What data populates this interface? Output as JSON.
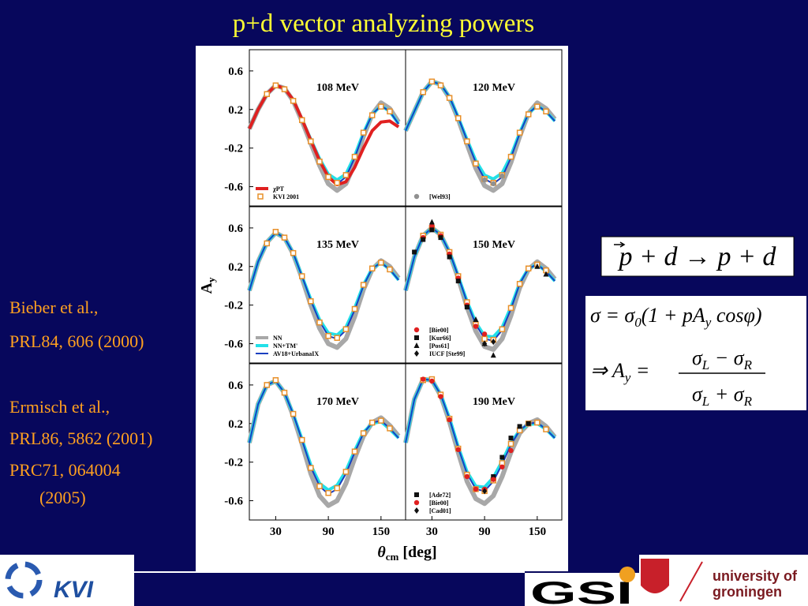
{
  "slide": {
    "title": "p+d vector analyzing powers",
    "references": [
      "Bieber et al.,",
      "PRL84, 606 (2000)",
      "Ermisch et al.,",
      "PRL86, 5862 (2001)",
      "PRC71, 064004",
      "(2005)"
    ]
  },
  "formulas": {
    "reaction": "p + d → p + d",
    "cross_section": [
      "σ = σ",
      "0",
      "(1 + pA",
      "y",
      " cosφ)"
    ],
    "analyzing_power": {
      "lhs": [
        "⇒ A",
        "y",
        " ="
      ],
      "numerator": [
        "σ",
        "L",
        " − σ",
        "R"
      ],
      "denominator": [
        "σ",
        "L",
        " + σ",
        "R"
      ]
    }
  },
  "figure": {
    "y_label": "A",
    "y_label_sub": "y",
    "x_label": "θ",
    "x_label_sub": "cm",
    "x_label_unit": "[deg]"
  },
  "logos": {
    "kvi": "KVI",
    "gsi": "GSI",
    "university_line1": "university of",
    "university_line2": "groningen"
  },
  "chart_data": [
    {
      "type": "line",
      "title": "108 MeV",
      "x": [
        0,
        10,
        20,
        30,
        40,
        50,
        60,
        70,
        80,
        90,
        100,
        110,
        120,
        130,
        140,
        150,
        160,
        170
      ],
      "xlim": [
        0,
        178
      ],
      "ylim": [
        -0.8,
        0.82
      ],
      "yticks": [
        0.6,
        0.2,
        -0.2,
        -0.6
      ],
      "legend": "lower left",
      "series": [
        {
          "color": "#a8a8a8",
          "marker": "line",
          "width": 6,
          "values": [
            0.0,
            0.2,
            0.36,
            0.45,
            0.42,
            0.29,
            0.08,
            -0.15,
            -0.38,
            -0.57,
            -0.64,
            -0.57,
            -0.36,
            -0.08,
            0.15,
            0.27,
            0.21,
            0.07
          ]
        },
        {
          "color": "#22e0e8",
          "marker": "line",
          "width": 4,
          "values": [
            0.0,
            0.2,
            0.36,
            0.45,
            0.42,
            0.3,
            0.1,
            -0.11,
            -0.31,
            -0.47,
            -0.53,
            -0.47,
            -0.28,
            -0.04,
            0.15,
            0.24,
            0.18,
            0.05
          ]
        },
        {
          "color": "#1a3fc0",
          "marker": "line",
          "width": 2,
          "values": [
            0.0,
            0.2,
            0.36,
            0.45,
            0.42,
            0.3,
            0.1,
            -0.12,
            -0.33,
            -0.5,
            -0.57,
            -0.5,
            -0.3,
            -0.05,
            0.15,
            0.24,
            0.18,
            0.05
          ]
        },
        {
          "name": "χPT",
          "color": "#e02020",
          "marker": "line",
          "width": 4,
          "values": [
            0.0,
            0.2,
            0.36,
            0.45,
            0.42,
            0.3,
            0.1,
            -0.12,
            -0.33,
            -0.5,
            -0.58,
            -0.55,
            -0.4,
            -0.2,
            -0.02,
            0.07,
            0.08,
            0.02
          ]
        },
        {
          "name": "KVI 2001",
          "color": "#e8902a",
          "marker": "square",
          "values": [
            null,
            null,
            0.36,
            0.45,
            0.41,
            0.29,
            0.09,
            -0.13,
            -0.34,
            -0.5,
            -0.56,
            -0.48,
            -0.29,
            -0.04,
            0.14,
            0.23,
            0.18,
            null
          ]
        }
      ]
    },
    {
      "type": "line",
      "title": "120 MeV",
      "x": [
        0,
        10,
        20,
        30,
        40,
        50,
        60,
        70,
        80,
        90,
        100,
        110,
        120,
        130,
        140,
        150,
        160,
        170
      ],
      "xlim": [
        0,
        178
      ],
      "ylim": [
        -0.8,
        0.82
      ],
      "legend": "lower left",
      "series": [
        {
          "color": "#a8a8a8",
          "marker": "line",
          "width": 6,
          "values": [
            -0.02,
            0.18,
            0.38,
            0.49,
            0.46,
            0.32,
            0.1,
            -0.16,
            -0.41,
            -0.59,
            -0.64,
            -0.57,
            -0.35,
            -0.08,
            0.16,
            0.27,
            0.21,
            0.1
          ]
        },
        {
          "color": "#22e0e8",
          "marker": "line",
          "width": 4,
          "values": [
            -0.02,
            0.18,
            0.38,
            0.49,
            0.46,
            0.33,
            0.12,
            -0.11,
            -0.33,
            -0.48,
            -0.52,
            -0.46,
            -0.28,
            -0.04,
            0.16,
            0.24,
            0.18,
            0.08
          ]
        },
        {
          "color": "#1a3fc0",
          "marker": "line",
          "width": 2,
          "values": [
            -0.02,
            0.18,
            0.38,
            0.49,
            0.46,
            0.33,
            0.12,
            -0.12,
            -0.35,
            -0.52,
            -0.57,
            -0.5,
            -0.3,
            -0.05,
            0.16,
            0.24,
            0.18,
            0.08
          ]
        },
        {
          "color": "#e8902a",
          "marker": "square",
          "values": [
            null,
            null,
            0.38,
            0.49,
            0.45,
            0.32,
            0.11,
            -0.13,
            -0.36,
            -0.52,
            -0.56,
            -0.48,
            -0.29,
            -0.04,
            0.15,
            0.23,
            0.18,
            null
          ]
        },
        {
          "name": "[Wel93]",
          "color": "#909090",
          "marker": "circle",
          "values": [
            null,
            null,
            null,
            null,
            null,
            null,
            null,
            null,
            null,
            -0.53,
            -0.57,
            -0.49,
            null,
            null,
            null,
            null,
            null,
            null
          ]
        }
      ]
    },
    {
      "type": "line",
      "title": "135 MeV",
      "x": [
        0,
        10,
        20,
        30,
        40,
        50,
        60,
        70,
        80,
        90,
        100,
        110,
        120,
        130,
        140,
        150,
        160,
        170
      ],
      "xlim": [
        0,
        178
      ],
      "ylim": [
        -0.8,
        0.82
      ],
      "yticks": [
        0.6,
        0.2,
        -0.2,
        -0.6
      ],
      "legend": "lower left",
      "series": [
        {
          "name": "NN",
          "color": "#a8a8a8",
          "marker": "line",
          "width": 6,
          "values": [
            -0.05,
            0.25,
            0.45,
            0.55,
            0.5,
            0.33,
            0.08,
            -0.2,
            -0.44,
            -0.6,
            -0.64,
            -0.55,
            -0.32,
            -0.04,
            0.17,
            0.26,
            0.2,
            0.08
          ]
        },
        {
          "name": "NN+TM'",
          "color": "#22e0e8",
          "marker": "line",
          "width": 4,
          "values": [
            -0.05,
            0.25,
            0.45,
            0.55,
            0.5,
            0.34,
            0.1,
            -0.14,
            -0.35,
            -0.49,
            -0.51,
            -0.43,
            -0.23,
            0.01,
            0.18,
            0.24,
            0.17,
            0.06
          ]
        },
        {
          "name": "AV18+UrbanaIX",
          "color": "#1a3fc0",
          "marker": "line",
          "width": 2,
          "values": [
            -0.05,
            0.25,
            0.45,
            0.55,
            0.5,
            0.34,
            0.1,
            -0.15,
            -0.37,
            -0.52,
            -0.55,
            -0.46,
            -0.25,
            0.0,
            0.18,
            0.24,
            0.17,
            0.06
          ]
        },
        {
          "color": "#e8902a",
          "marker": "square",
          "values": [
            null,
            null,
            0.44,
            0.56,
            0.5,
            0.34,
            0.1,
            -0.16,
            -0.38,
            -0.52,
            -0.54,
            -0.45,
            -0.24,
            0.01,
            0.18,
            0.24,
            0.17,
            null
          ]
        }
      ]
    },
    {
      "type": "line",
      "title": "150 MeV",
      "x": [
        0,
        10,
        20,
        30,
        40,
        50,
        60,
        70,
        80,
        90,
        100,
        110,
        120,
        130,
        140,
        150,
        160,
        170
      ],
      "xlim": [
        0,
        178
      ],
      "ylim": [
        -0.8,
        0.82
      ],
      "legend": "lower left",
      "series": [
        {
          "color": "#a8a8a8",
          "marker": "line",
          "width": 6,
          "values": [
            -0.05,
            0.3,
            0.52,
            0.6,
            0.53,
            0.34,
            0.08,
            -0.22,
            -0.47,
            -0.63,
            -0.66,
            -0.55,
            -0.31,
            -0.02,
            0.17,
            0.25,
            0.18,
            0.07
          ]
        },
        {
          "color": "#22e0e8",
          "marker": "line",
          "width": 4,
          "values": [
            -0.05,
            0.3,
            0.52,
            0.6,
            0.53,
            0.35,
            0.1,
            -0.16,
            -0.38,
            -0.52,
            -0.53,
            -0.43,
            -0.22,
            0.03,
            0.18,
            0.22,
            0.15,
            0.05
          ]
        },
        {
          "color": "#1a3fc0",
          "marker": "line",
          "width": 2,
          "values": [
            -0.05,
            0.3,
            0.52,
            0.6,
            0.53,
            0.35,
            0.1,
            -0.17,
            -0.4,
            -0.55,
            -0.57,
            -0.46,
            -0.24,
            0.02,
            0.18,
            0.22,
            0.15,
            0.05
          ]
        },
        {
          "color": "#e8902a",
          "marker": "square",
          "values": [
            null,
            null,
            0.52,
            0.6,
            0.53,
            0.35,
            0.1,
            -0.17,
            -0.4,
            -0.55,
            -0.56,
            -0.45,
            -0.23,
            0.02,
            0.18,
            0.22,
            0.16,
            null
          ]
        },
        {
          "name": "[Bie00]",
          "color": "#e02020",
          "marker": "circle",
          "values": [
            null,
            null,
            0.5,
            0.62,
            0.52,
            0.33,
            0.08,
            -0.2,
            -0.42,
            -0.5,
            null,
            null,
            null,
            null,
            null,
            null,
            null,
            null
          ]
        },
        {
          "name": "[Kur66]",
          "color": "#111111",
          "marker": "filled-square",
          "values": [
            null,
            0.35,
            0.48,
            0.58,
            0.5,
            0.3,
            0.05,
            -0.22,
            null,
            null,
            null,
            null,
            null,
            null,
            null,
            null,
            null,
            null
          ]
        },
        {
          "name": "[Pos61]",
          "color": "#111111",
          "marker": "triangle",
          "values": [
            null,
            null,
            null,
            0.66,
            null,
            null,
            null,
            null,
            -0.35,
            -0.6,
            -0.72,
            null,
            null,
            null,
            null,
            0.2,
            0.12,
            null
          ]
        },
        {
          "name": "IUCF [Ste99]",
          "color": "#111111",
          "marker": "diamond",
          "values": [
            null,
            null,
            null,
            null,
            null,
            null,
            null,
            null,
            null,
            -0.6,
            -0.58,
            null,
            null,
            null,
            null,
            null,
            null,
            null
          ]
        }
      ]
    },
    {
      "type": "line",
      "title": "170 MeV",
      "x": [
        0,
        10,
        20,
        30,
        40,
        50,
        60,
        70,
        80,
        90,
        100,
        110,
        120,
        130,
        140,
        150,
        160,
        170
      ],
      "xlim": [
        0,
        178
      ],
      "ylim": [
        -0.8,
        0.82
      ],
      "yticks": [
        0.6,
        0.2,
        -0.2,
        -0.6
      ],
      "xticks": [
        30,
        90,
        150
      ],
      "legend": "lower left",
      "series": [
        {
          "color": "#a8a8a8",
          "marker": "line",
          "width": 6,
          "values": [
            0.0,
            0.4,
            0.6,
            0.64,
            0.52,
            0.28,
            -0.01,
            -0.32,
            -0.55,
            -0.65,
            -0.6,
            -0.42,
            -0.16,
            0.07,
            0.21,
            0.26,
            0.18,
            0.07
          ]
        },
        {
          "color": "#22e0e8",
          "marker": "line",
          "width": 4,
          "values": [
            0.0,
            0.4,
            0.6,
            0.64,
            0.52,
            0.3,
            0.04,
            -0.23,
            -0.42,
            -0.49,
            -0.44,
            -0.29,
            -0.08,
            0.11,
            0.2,
            0.22,
            0.14,
            0.05
          ]
        },
        {
          "color": "#1a3fc0",
          "marker": "line",
          "width": 2,
          "values": [
            0.0,
            0.4,
            0.6,
            0.64,
            0.52,
            0.3,
            0.03,
            -0.25,
            -0.45,
            -0.53,
            -0.48,
            -0.32,
            -0.1,
            0.1,
            0.21,
            0.23,
            0.15,
            0.05
          ]
        },
        {
          "color": "#e8902a",
          "marker": "square",
          "values": [
            null,
            null,
            0.6,
            0.65,
            0.52,
            0.3,
            0.03,
            -0.26,
            -0.45,
            -0.52,
            -0.47,
            -0.3,
            -0.09,
            0.1,
            0.21,
            0.23,
            0.15,
            null
          ]
        }
      ]
    },
    {
      "type": "line",
      "title": "190 MeV",
      "x": [
        0,
        10,
        20,
        30,
        40,
        50,
        60,
        70,
        80,
        90,
        100,
        110,
        120,
        130,
        140,
        150,
        160,
        170
      ],
      "xlim": [
        0,
        178
      ],
      "ylim": [
        -0.8,
        0.82
      ],
      "xticks": [
        30,
        90,
        150
      ],
      "legend": "lower left",
      "series": [
        {
          "color": "#a8a8a8",
          "marker": "line",
          "width": 6,
          "values": [
            0.0,
            0.45,
            0.66,
            0.65,
            0.49,
            0.22,
            -0.1,
            -0.4,
            -0.58,
            -0.63,
            -0.55,
            -0.35,
            -0.1,
            0.1,
            0.2,
            0.24,
            0.17,
            0.06
          ]
        },
        {
          "color": "#22e0e8",
          "marker": "line",
          "width": 4,
          "values": [
            0.0,
            0.45,
            0.66,
            0.65,
            0.5,
            0.26,
            -0.04,
            -0.3,
            -0.45,
            -0.46,
            -0.36,
            -0.19,
            0.0,
            0.13,
            0.19,
            0.2,
            0.14,
            0.05
          ]
        },
        {
          "color": "#1a3fc0",
          "marker": "line",
          "width": 2,
          "values": [
            0.0,
            0.45,
            0.66,
            0.65,
            0.5,
            0.25,
            -0.05,
            -0.32,
            -0.48,
            -0.5,
            -0.4,
            -0.22,
            -0.02,
            0.13,
            0.2,
            0.21,
            0.14,
            0.05
          ]
        },
        {
          "color": "#e8902a",
          "marker": "square",
          "values": [
            null,
            null,
            0.65,
            0.66,
            0.5,
            0.25,
            -0.06,
            -0.33,
            -0.48,
            -0.5,
            -0.39,
            -0.21,
            -0.01,
            0.13,
            0.2,
            0.21,
            0.14,
            null
          ]
        },
        {
          "name": "[Ade72]",
          "color": "#111111",
          "marker": "filled-square",
          "values": [
            null,
            null,
            null,
            null,
            null,
            null,
            null,
            null,
            null,
            null,
            -0.35,
            -0.15,
            0.05,
            0.17,
            0.2,
            null,
            null,
            null
          ]
        },
        {
          "name": "[Bie00]",
          "color": "#e02020",
          "marker": "circle",
          "values": [
            null,
            null,
            0.66,
            0.64,
            0.48,
            0.24,
            -0.07,
            -0.35,
            -0.48,
            -0.48,
            -0.38,
            -0.25,
            -0.08,
            null,
            null,
            null,
            null,
            null
          ]
        },
        {
          "name": "[Cad01]",
          "color": "#111111",
          "marker": "diamond",
          "values": [
            null,
            null,
            null,
            null,
            null,
            null,
            null,
            null,
            null,
            -0.5,
            null,
            null,
            null,
            null,
            null,
            null,
            null,
            null
          ]
        }
      ]
    }
  ]
}
